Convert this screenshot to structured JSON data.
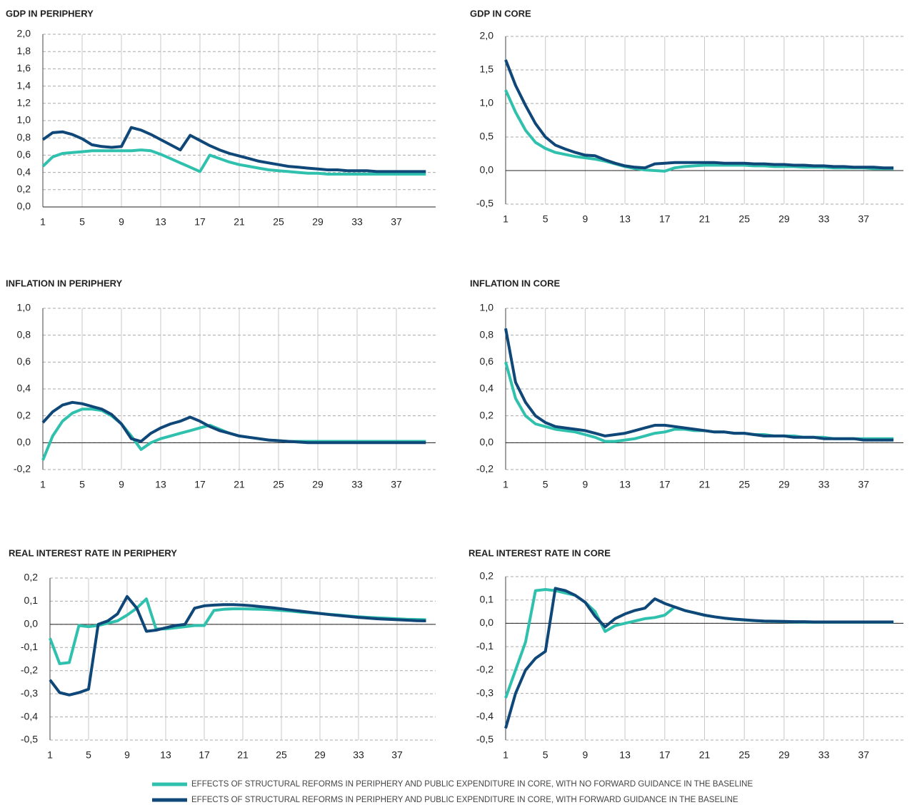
{
  "chart_data": [
    {
      "type": "line",
      "title": "GDP IN PERIPHERY",
      "x": [
        1,
        2,
        3,
        4,
        5,
        6,
        7,
        8,
        9,
        10,
        11,
        12,
        13,
        14,
        15,
        16,
        17,
        18,
        19,
        20,
        21,
        22,
        23,
        24,
        25,
        26,
        27,
        28,
        29,
        30,
        31,
        32,
        33,
        34,
        35,
        36,
        37,
        38,
        39,
        40
      ],
      "xlim": [
        1,
        41
      ],
      "xticks": [
        1,
        5,
        9,
        13,
        17,
        21,
        25,
        29,
        33,
        37
      ],
      "ylim": [
        0,
        2
      ],
      "yticks": [
        {
          "value": 0,
          "label": "0,0"
        },
        {
          "value": 0.2,
          "label": "0,2"
        },
        {
          "value": 0.4,
          "label": "0,4"
        },
        {
          "value": 0.6,
          "label": "0,6"
        },
        {
          "value": 0.8,
          "label": "0,8"
        },
        {
          "value": 1,
          "label": "1,0"
        },
        {
          "value": 1.2,
          "label": "1,2"
        },
        {
          "value": 1.4,
          "label": "1,4"
        },
        {
          "value": 1.6,
          "label": "1,6"
        },
        {
          "value": 1.8,
          "label": "1,8"
        },
        {
          "value": 2,
          "label": "2,0"
        }
      ],
      "series": [
        {
          "values": [
            0.47,
            0.58,
            0.62,
            0.63,
            0.64,
            0.65,
            0.65,
            0.65,
            0.65,
            0.65,
            0.66,
            0.65,
            0.61,
            0.56,
            0.51,
            0.46,
            0.41,
            0.6,
            0.56,
            0.52,
            0.49,
            0.47,
            0.45,
            0.43,
            0.42,
            0.41,
            0.4,
            0.39,
            0.39,
            0.38,
            0.38,
            0.38,
            0.38,
            0.38,
            0.38,
            0.38,
            0.38,
            0.38,
            0.38,
            0.38
          ]
        },
        {
          "values": [
            0.78,
            0.86,
            0.87,
            0.84,
            0.79,
            0.72,
            0.7,
            0.69,
            0.7,
            0.92,
            0.89,
            0.84,
            0.78,
            0.72,
            0.66,
            0.83,
            0.77,
            0.71,
            0.66,
            0.62,
            0.59,
            0.56,
            0.53,
            0.51,
            0.49,
            0.47,
            0.46,
            0.45,
            0.44,
            0.43,
            0.43,
            0.42,
            0.42,
            0.42,
            0.41,
            0.41,
            0.41,
            0.41,
            0.41,
            0.41
          ]
        }
      ]
    },
    {
      "type": "line",
      "title": "GDP IN CORE",
      "x": [
        1,
        2,
        3,
        4,
        5,
        6,
        7,
        8,
        9,
        10,
        11,
        12,
        13,
        14,
        15,
        16,
        17,
        18,
        19,
        20,
        21,
        22,
        23,
        24,
        25,
        26,
        27,
        28,
        29,
        30,
        31,
        32,
        33,
        34,
        35,
        36,
        37,
        38,
        39,
        40
      ],
      "xlim": [
        1,
        41
      ],
      "xticks": [
        1,
        5,
        9,
        13,
        17,
        21,
        25,
        29,
        33,
        37
      ],
      "ylim": [
        -0.5,
        2
      ],
      "yticks": [
        {
          "value": -0.5,
          "label": "-0,5"
        },
        {
          "value": 0,
          "label": "0,0"
        },
        {
          "value": 0.5,
          "label": "0,5"
        },
        {
          "value": 1,
          "label": "1,0"
        },
        {
          "value": 1.5,
          "label": "1,5"
        },
        {
          "value": 2,
          "label": "2,0"
        }
      ],
      "series": [
        {
          "values": [
            1.2,
            0.87,
            0.6,
            0.42,
            0.33,
            0.27,
            0.24,
            0.21,
            0.19,
            0.17,
            0.14,
            0.1,
            0.06,
            0.03,
            0.01,
            0,
            -0.01,
            0.04,
            0.06,
            0.07,
            0.08,
            0.08,
            0.08,
            0.08,
            0.08,
            0.07,
            0.07,
            0.06,
            0.06,
            0.06,
            0.05,
            0.05,
            0.05,
            0.04,
            0.04,
            0.04,
            0.04,
            0.03,
            0.03,
            0.03
          ]
        },
        {
          "values": [
            1.65,
            1.27,
            0.97,
            0.7,
            0.5,
            0.38,
            0.32,
            0.27,
            0.23,
            0.22,
            0.16,
            0.11,
            0.07,
            0.05,
            0.04,
            0.1,
            0.11,
            0.12,
            0.12,
            0.12,
            0.12,
            0.12,
            0.11,
            0.11,
            0.11,
            0.1,
            0.1,
            0.09,
            0.09,
            0.08,
            0.08,
            0.07,
            0.07,
            0.06,
            0.06,
            0.05,
            0.05,
            0.05,
            0.04,
            0.04
          ]
        }
      ]
    },
    {
      "type": "line",
      "title": "INFLATION IN PERIPHERY",
      "x": [
        1,
        2,
        3,
        4,
        5,
        6,
        7,
        8,
        9,
        10,
        11,
        12,
        13,
        14,
        15,
        16,
        17,
        18,
        19,
        20,
        21,
        22,
        23,
        24,
        25,
        26,
        27,
        28,
        29,
        30,
        31,
        32,
        33,
        34,
        35,
        36,
        37,
        38,
        39,
        40
      ],
      "xlim": [
        1,
        41
      ],
      "xticks": [
        1,
        5,
        9,
        13,
        17,
        21,
        25,
        29,
        33,
        37
      ],
      "ylim": [
        -0.2,
        1
      ],
      "yticks": [
        {
          "value": -0.2,
          "label": "-0,2"
        },
        {
          "value": 0,
          "label": "0,0"
        },
        {
          "value": 0.2,
          "label": "0,2"
        },
        {
          "value": 0.4,
          "label": "0,4"
        },
        {
          "value": 0.6,
          "label": "0,6"
        },
        {
          "value": 0.8,
          "label": "0,8"
        },
        {
          "value": 1,
          "label": "1,0"
        }
      ],
      "series": [
        {
          "values": [
            -0.13,
            0.05,
            0.16,
            0.22,
            0.25,
            0.25,
            0.24,
            0.2,
            0.14,
            0.05,
            -0.05,
            0,
            0.03,
            0.05,
            0.07,
            0.09,
            0.11,
            0.13,
            0.1,
            0.07,
            0.05,
            0.04,
            0.03,
            0.02,
            0.015,
            0.01,
            0.01,
            0.01,
            0.01,
            0.01,
            0.01,
            0.01,
            0.01,
            0.01,
            0.01,
            0.01,
            0.01,
            0.01,
            0.01,
            0.01
          ]
        },
        {
          "values": [
            0.15,
            0.23,
            0.28,
            0.3,
            0.29,
            0.27,
            0.25,
            0.21,
            0.14,
            0.03,
            0.01,
            0.07,
            0.11,
            0.14,
            0.16,
            0.19,
            0.16,
            0.12,
            0.09,
            0.07,
            0.05,
            0.04,
            0.03,
            0.02,
            0.015,
            0.01,
            0.005,
            0,
            0,
            0,
            0,
            0,
            0,
            0,
            0,
            0,
            0,
            0,
            0,
            0
          ]
        }
      ]
    },
    {
      "type": "line",
      "title": "INFLATION IN CORE",
      "x": [
        1,
        2,
        3,
        4,
        5,
        6,
        7,
        8,
        9,
        10,
        11,
        12,
        13,
        14,
        15,
        16,
        17,
        18,
        19,
        20,
        21,
        22,
        23,
        24,
        25,
        26,
        27,
        28,
        29,
        30,
        31,
        32,
        33,
        34,
        35,
        36,
        37,
        38,
        39,
        40
      ],
      "xlim": [
        1,
        41
      ],
      "xticks": [
        1,
        5,
        9,
        13,
        17,
        21,
        25,
        29,
        33,
        37
      ],
      "ylim": [
        -0.2,
        1
      ],
      "yticks": [
        {
          "value": -0.2,
          "label": "-0,2"
        },
        {
          "value": 0,
          "label": "0,0"
        },
        {
          "value": 0.2,
          "label": "0,2"
        },
        {
          "value": 0.4,
          "label": "0,4"
        },
        {
          "value": 0.6,
          "label": "0,6"
        },
        {
          "value": 0.8,
          "label": "0,8"
        },
        {
          "value": 1,
          "label": "1,0"
        }
      ],
      "series": [
        {
          "values": [
            0.6,
            0.33,
            0.2,
            0.14,
            0.12,
            0.1,
            0.09,
            0.08,
            0.06,
            0.04,
            0.01,
            0.01,
            0.02,
            0.03,
            0.05,
            0.07,
            0.08,
            0.1,
            0.1,
            0.09,
            0.09,
            0.08,
            0.08,
            0.07,
            0.07,
            0.06,
            0.06,
            0.05,
            0.05,
            0.05,
            0.04,
            0.04,
            0.04,
            0.03,
            0.03,
            0.03,
            0.03,
            0.03,
            0.03,
            0.03
          ]
        },
        {
          "values": [
            0.85,
            0.45,
            0.3,
            0.2,
            0.15,
            0.12,
            0.11,
            0.1,
            0.09,
            0.07,
            0.05,
            0.06,
            0.07,
            0.09,
            0.11,
            0.13,
            0.13,
            0.12,
            0.11,
            0.1,
            0.09,
            0.08,
            0.08,
            0.07,
            0.07,
            0.06,
            0.05,
            0.05,
            0.05,
            0.04,
            0.04,
            0.04,
            0.03,
            0.03,
            0.03,
            0.03,
            0.02,
            0.02,
            0.02,
            0.02
          ]
        }
      ]
    },
    {
      "type": "line",
      "title": "REAL INTEREST RATE IN PERIPHERY",
      "x": [
        1,
        2,
        3,
        4,
        5,
        6,
        7,
        8,
        9,
        10,
        11,
        12,
        13,
        14,
        15,
        16,
        17,
        18,
        19,
        20,
        21,
        22,
        23,
        24,
        25,
        26,
        27,
        28,
        29,
        30,
        31,
        32,
        33,
        34,
        35,
        36,
        37,
        38,
        39,
        40
      ],
      "xlim": [
        1,
        41
      ],
      "xticks": [
        1,
        5,
        9,
        13,
        17,
        21,
        25,
        29,
        33,
        37
      ],
      "ylim": [
        -0.5,
        0.2
      ],
      "yticks": [
        {
          "value": -0.5,
          "label": "-0,5"
        },
        {
          "value": -0.4,
          "label": "-0,4"
        },
        {
          "value": -0.3,
          "label": "-0,3"
        },
        {
          "value": -0.2,
          "label": "-0,2"
        },
        {
          "value": -0.1,
          "label": "-0,1"
        },
        {
          "value": 0,
          "label": "0,0"
        },
        {
          "value": 0.1,
          "label": "0,1"
        },
        {
          "value": 0.2,
          "label": "0,2"
        }
      ],
      "series": [
        {
          "values": [
            -0.06,
            -0.17,
            -0.165,
            -0.005,
            -0.01,
            -0.005,
            0.005,
            0.015,
            0.04,
            0.07,
            0.11,
            -0.02,
            -0.02,
            -0.015,
            -0.01,
            -0.005,
            -0.005,
            0.06,
            0.065,
            0.067,
            0.067,
            0.066,
            0.065,
            0.063,
            0.06,
            0.057,
            0.053,
            0.05,
            0.047,
            0.043,
            0.04,
            0.036,
            0.033,
            0.03,
            0.028,
            0.026,
            0.024,
            0.022,
            0.021,
            0.02
          ]
        },
        {
          "values": [
            -0.24,
            -0.295,
            -0.305,
            -0.295,
            -0.28,
            0,
            0.015,
            0.045,
            0.12,
            0.07,
            -0.03,
            -0.025,
            -0.015,
            -0.005,
            0,
            0.07,
            0.08,
            0.083,
            0.085,
            0.085,
            0.083,
            0.08,
            0.076,
            0.072,
            0.067,
            0.062,
            0.057,
            0.052,
            0.047,
            0.042,
            0.038,
            0.034,
            0.03,
            0.027,
            0.024,
            0.022,
            0.02,
            0.018,
            0.016,
            0.015
          ]
        }
      ]
    },
    {
      "type": "line",
      "title": "REAL INTEREST RATE IN CORE",
      "x": [
        1,
        2,
        3,
        4,
        5,
        6,
        7,
        8,
        9,
        10,
        11,
        12,
        13,
        14,
        15,
        16,
        17,
        18,
        19,
        20,
        21,
        22,
        23,
        24,
        25,
        26,
        27,
        28,
        29,
        30,
        31,
        32,
        33,
        34,
        35,
        36,
        37,
        38,
        39,
        40
      ],
      "xlim": [
        1,
        41
      ],
      "xticks": [
        1,
        5,
        9,
        13,
        17,
        21,
        25,
        29,
        33,
        37
      ],
      "ylim": [
        -0.5,
        0.2
      ],
      "yticks": [
        {
          "value": -0.5,
          "label": "-0,5"
        },
        {
          "value": -0.4,
          "label": "-0,4"
        },
        {
          "value": -0.3,
          "label": "-0,3"
        },
        {
          "value": -0.2,
          "label": "-0,2"
        },
        {
          "value": -0.1,
          "label": "-0,1"
        },
        {
          "value": 0,
          "label": "0,0"
        },
        {
          "value": 0.1,
          "label": "0,1"
        },
        {
          "value": 0.2,
          "label": "0,2"
        }
      ],
      "series": [
        {
          "values": [
            -0.32,
            -0.2,
            -0.08,
            0.14,
            0.145,
            0.14,
            0.13,
            0.12,
            0.09,
            0.05,
            -0.035,
            -0.01,
            0,
            0.01,
            0.02,
            0.025,
            0.035,
            0.07,
            0.055,
            0.045,
            0.035,
            0.028,
            0.022,
            0.017,
            0.014,
            0.011,
            0.009,
            0.008,
            0.007,
            0.006,
            0.005,
            0.005,
            0.005,
            0.005,
            0.005,
            0.005,
            0.005,
            0.005,
            0.005,
            0.005
          ]
        },
        {
          "values": [
            -0.45,
            -0.3,
            -0.2,
            -0.15,
            -0.12,
            0.15,
            0.14,
            0.12,
            0.09,
            0.03,
            -0.015,
            0.02,
            0.04,
            0.055,
            0.065,
            0.105,
            0.085,
            0.07,
            0.055,
            0.045,
            0.035,
            0.028,
            0.022,
            0.018,
            0.015,
            0.012,
            0.01,
            0.009,
            0.008,
            0.007,
            0.007,
            0.006,
            0.006,
            0.006,
            0.006,
            0.006,
            0.006,
            0.006,
            0.006,
            0.006
          ]
        }
      ]
    }
  ],
  "legend": [
    {
      "name": "EFFECTS OF STRUCTURAL REFORMS IN PERIPHERY AND PUBLIC EXPENDITURE IN CORE, WITH NO FORWARD GUIDANCE IN THE BASELINE",
      "color": "#2fc1ad"
    },
    {
      "name": "EFFECTS OF STRUCTURAL REFORMS IN PERIPHERY AND PUBLIC EXPENDITURE IN CORE, WITH FORWARD GUIDANCE IN THE BASELINE",
      "color": "#0f4778"
    }
  ]
}
